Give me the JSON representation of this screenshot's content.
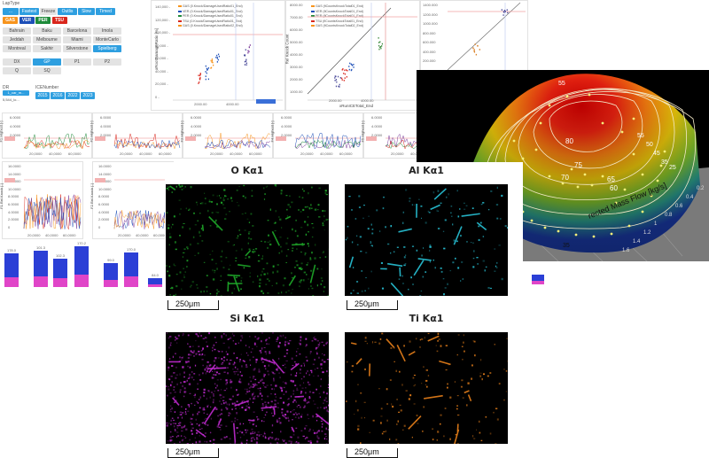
{
  "filters": {
    "lap_type_label": "LapType",
    "lap_types": [
      "...",
      "Fastest",
      "Freeze",
      "Outlis",
      "Slow",
      "Timed"
    ],
    "teams": [
      {
        "label": "GAS",
        "color": "#f7941d"
      },
      {
        "label": "VER",
        "color": "#1d4fb8"
      },
      {
        "label": "PER",
        "color": "#1e8b3a"
      },
      {
        "label": "TSU",
        "color": "#d9261c"
      }
    ],
    "tracks": [
      "Bahrain",
      "Baku",
      "Barcelona",
      "Imola",
      "Jeddah",
      "Melbourne",
      "Miami",
      "MonteCarlo",
      "Montreal",
      "Sakhir",
      "Silverstone",
      "Spielberg"
    ],
    "sessions": [
      "DX",
      "GP",
      "P1",
      "P2",
      "Q",
      "SQ"
    ],
    "dr_label": "DR",
    "dr_value": "1_car_m...",
    "dr_sub": "5,544_lo...",
    "ice_label": "ICENumber",
    "years": [
      "2015",
      "2016",
      "2022",
      "2023"
    ]
  },
  "charts": {
    "top1": {
      "ylabel": "xRootDamageRatio [%]",
      "xlabel": "2000.00",
      "y_ticks": [
        "140,000 -",
        "120,000 -",
        "100,000 -",
        "80,000 -",
        "60,000 -",
        "40,000 -",
        "20,000 -",
        "0 -"
      ],
      "x_ticks": [
        "2000.00",
        "4000.00"
      ],
      "legend": [
        "GAS (0.Knock/DamageUsedRatio01_End)",
        "VER (0.Knock/DamageUsedRatio01_End)",
        "PER (0.Knock/DamageUsedRatio01_End)",
        "TSU (0.Knock/DamageUsedRatio01_End)",
        "GAS (0.Knock/DamageUsedRatio02_End)"
      ]
    },
    "top2": {
      "ylabel": "Rel Knock Count",
      "xlabel": "xRunICETotal_End",
      "y_ticks": [
        "8000.00",
        "7000.00",
        "6000.00",
        "5000.00",
        "4000.00",
        "3000.00",
        "2000.00",
        "1000.00"
      ],
      "x_ticks": [
        "2000.00",
        "4000.00"
      ],
      "legend": [
        "GAS (fiCountsKnockTotal01_End)",
        "VER (fiCountsKnockTotal01_End)",
        "PER (fiCountsKnockTotal01_End)",
        "TSU (fiCountsKnockTotal01_End)",
        "GAS (fiCountsKnockTotal02_End)"
      ]
    },
    "top3": {
      "y_ticks": [
        "1400.000",
        "1200.000",
        "1000.000",
        "800.000",
        "600.000",
        "400.000",
        "200.000"
      ]
    },
    "mid": [
      {
        "ylabel": "F1 Highest [-]",
        "y_ticks": [
          "6.0000",
          "4.0000",
          "2.0000"
        ],
        "x_ticks": [
          "20,0000",
          "40,0000",
          "60,0000"
        ]
      },
      {
        "ylabel": "F2 Highest [-]",
        "y_ticks": [
          "6.0000",
          "4.0000",
          "2.0000"
        ],
        "x_ticks": [
          "20,0000",
          "40,0000",
          "60,0000"
        ]
      },
      {
        "ylabel": "F3 Highest [-]",
        "y_ticks": [
          "6.0000",
          "4.0000",
          "2.0000"
        ],
        "x_ticks": [
          "20,0000",
          "40,0000",
          "60,0000"
        ]
      },
      {
        "ylabel": "F4 Highest [-]",
        "y_ticks": [
          "6.0000",
          "4.0000",
          "2.0000"
        ],
        "x_ticks": [
          "20,0000",
          "40,0000",
          "60,0000"
        ]
      },
      {
        "ylabel": "F5 Highest [-]",
        "y_ticks": [
          "6.0000",
          "4.0000",
          "2.0000"
        ],
        "x_ticks": [
          "20,0000",
          "40,0000",
          "60,0000"
        ]
      }
    ],
    "low": [
      {
        "ylabel": "F1 Rel Knock [-]",
        "y_ticks": [
          "16.0000",
          "14.0000",
          "12.0000",
          "10.0000",
          "8.0000",
          "6.0000",
          "4.0000",
          "2.0000",
          "0"
        ],
        "x_ticks": [
          "20,0000",
          "40,0000",
          "60,0000"
        ]
      },
      {
        "ylabel": "F2 Rel Knock [-]",
        "y_ticks": [
          "16.0000",
          "14.0000",
          "12.0000",
          "10.0000",
          "8.0000",
          "6.0000",
          "4.0000",
          "2.0000",
          "0"
        ],
        "x_ticks": [
          "20,0000",
          "40,0000",
          "60,0000"
        ]
      }
    ],
    "stacked_labels": [
      "178.0",
      "101.3",
      "102.3",
      "170.2",
      "99.0",
      "170.0",
      "84.0"
    ]
  },
  "eds": {
    "panels": [
      {
        "title": "O Kα1",
        "scale": "250μm",
        "color": "#1faa2a"
      },
      {
        "title": "Al Kα1",
        "scale": "250μm",
        "color": "#28c4d8"
      },
      {
        "title": "Si Kα1",
        "scale": "250μm",
        "color": "#c02bd0"
      },
      {
        "title": "Ti Kα1",
        "scale": "250μm",
        "color": "#e8801a"
      }
    ]
  },
  "plot3d": {
    "contours": [
      "55",
      "80",
      "75",
      "70",
      "65",
      "60",
      "55",
      "50",
      "45",
      "35",
      "25"
    ],
    "axis_label": "rected Mass Flow [kg/s]",
    "ticks": [
      "0.2",
      "0.4",
      "0.6",
      "0.8",
      "1",
      "1.2",
      "1.4",
      "1.6"
    ],
    "bottom_ticks": [
      "35"
    ],
    "corner_label": "[-]"
  }
}
